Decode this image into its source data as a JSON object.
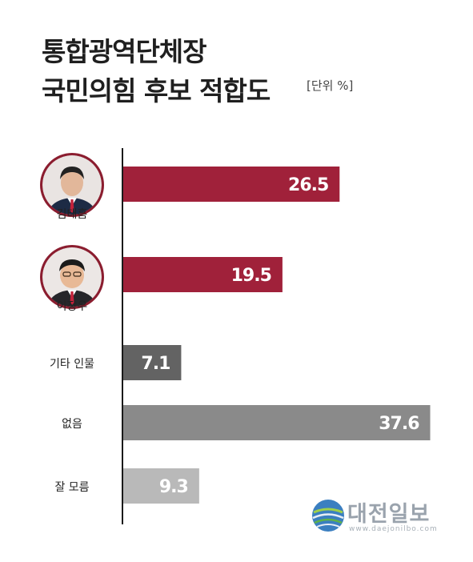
{
  "title_line1": "통합광역단체장",
  "title_line2": "국민의힘 후보 적합도",
  "unit": "[단위 %]",
  "logo": {
    "name": "대전일보",
    "url": "www.daejonilbo.com"
  },
  "chart_data": {
    "type": "bar",
    "orientation": "horizontal",
    "title": "통합광역단체장 국민의힘 후보 적합도",
    "unit": "%",
    "categories": [
      "김태흠",
      "이장우",
      "기타 인물",
      "없음",
      "잘 모름"
    ],
    "values": [
      26.5,
      19.5,
      7.1,
      37.6,
      9.3
    ],
    "value_labels": [
      "26.5",
      "19.5",
      "7.1",
      "37.6",
      "9.3"
    ],
    "colors": [
      "#a0213a",
      "#a0213a",
      "#636363",
      "#8a8a8a",
      "#b9b9b9"
    ],
    "category_icons": [
      "candidate-photo",
      "candidate-photo",
      null,
      null,
      null
    ],
    "grid": false,
    "legend": "none"
  }
}
